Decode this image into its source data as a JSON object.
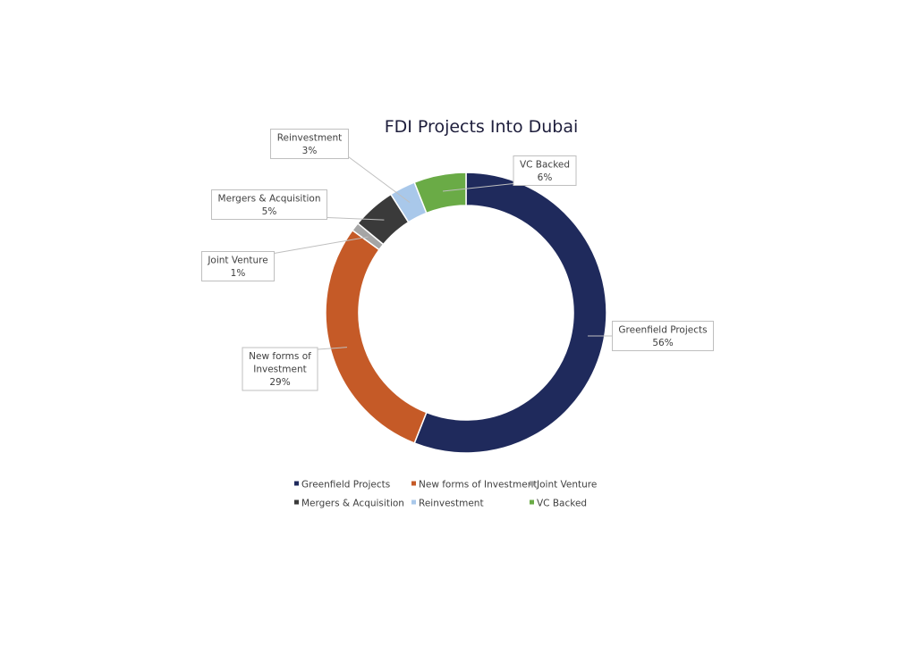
{
  "chart_data": {
    "type": "pie",
    "variant": "doughnut",
    "title": "FDI Projects Into Dubai",
    "legend_position": "bottom",
    "series": [
      {
        "name": "Greenfield Projects",
        "value": 56,
        "label_lines": [
          "Greenfield Projects",
          "56%"
        ],
        "color": "#1f2a5c"
      },
      {
        "name": "New forms of Investment",
        "value": 29,
        "label_lines": [
          "New forms of",
          "Investment",
          "29%"
        ],
        "color": "#c55a27"
      },
      {
        "name": "Joint Venture",
        "value": 1,
        "label_lines": [
          "Joint Venture",
          "1%"
        ],
        "color": "#a5a5a5"
      },
      {
        "name": "Mergers & Acquisition",
        "value": 5,
        "label_lines": [
          "Mergers & Acquisition",
          "5%"
        ],
        "color": "#3a3a3a"
      },
      {
        "name": "Reinvestment",
        "value": 3,
        "label_lines": [
          "Reinvestment",
          "3%"
        ],
        "color": "#a9c8ea"
      },
      {
        "name": "VC Backed",
        "value": 6,
        "label_lines": [
          "VC Backed",
          "6%"
        ],
        "color": "#6aab46"
      }
    ]
  }
}
